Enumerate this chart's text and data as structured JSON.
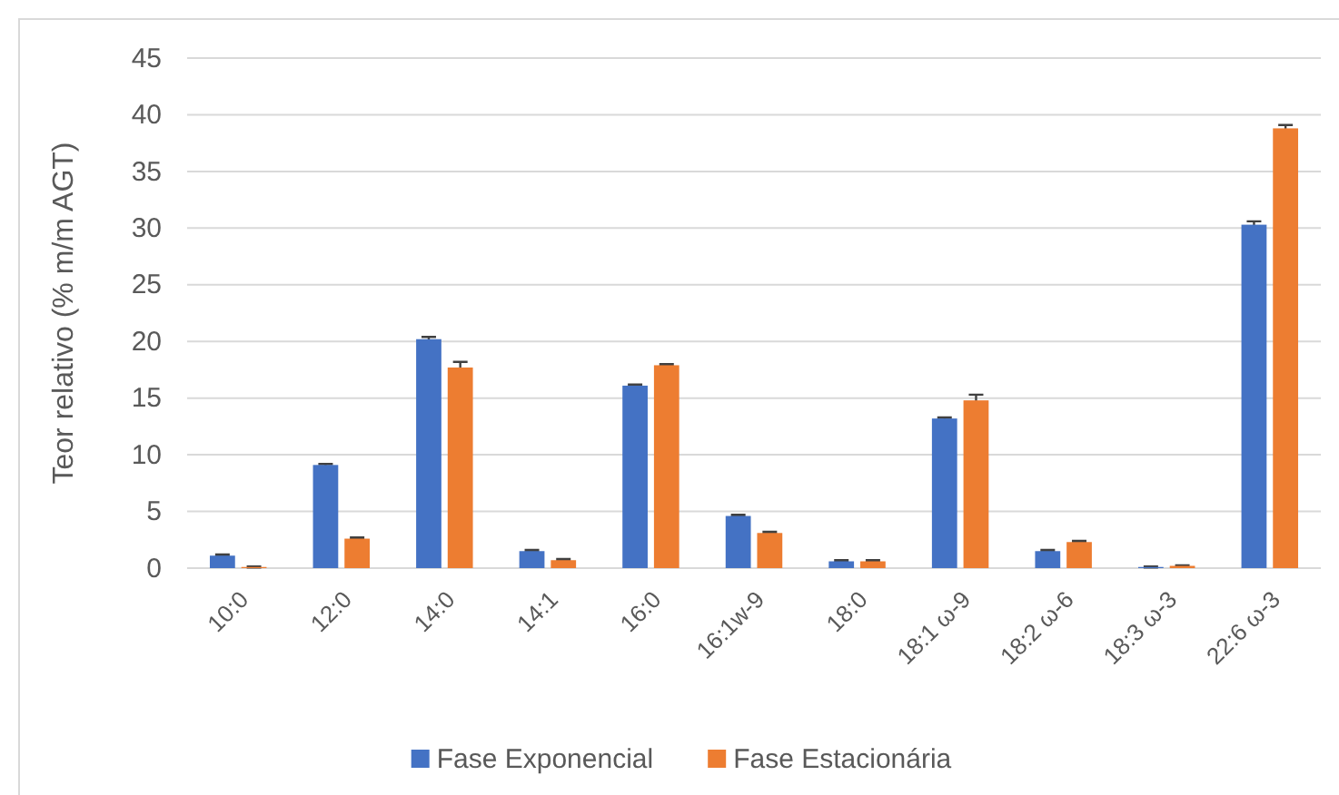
{
  "chart_data": {
    "type": "bar",
    "ylabel": "Teor relativo (% m/m AGT)",
    "categories": [
      "10:0",
      "12:0",
      "14:0",
      "14:1",
      "16:0",
      "16:1w-9",
      "18:0",
      "18:1 ω-9",
      "18:2 ω-6",
      "18:3 ω-3",
      "22:6 ω-3"
    ],
    "series": [
      {
        "name": "Fase Exponencial",
        "color": "#4472c4",
        "values": [
          1.1,
          9.1,
          20.2,
          1.5,
          16.1,
          4.6,
          0.6,
          13.2,
          1.5,
          0.1,
          30.3
        ],
        "errors": [
          0.1,
          0.1,
          0.2,
          0.1,
          0.1,
          0.1,
          0.1,
          0.1,
          0.1,
          0.05,
          0.3
        ]
      },
      {
        "name": "Fase Estacionária",
        "color": "#ed7d31",
        "values": [
          0.1,
          2.6,
          17.7,
          0.7,
          17.9,
          3.1,
          0.6,
          14.8,
          2.3,
          0.2,
          38.8
        ],
        "errors": [
          0.05,
          0.1,
          0.5,
          0.1,
          0.1,
          0.1,
          0.1,
          0.5,
          0.1,
          0.05,
          0.3
        ]
      }
    ],
    "ylim": [
      0,
      45
    ],
    "yticks": [
      0,
      5,
      10,
      15,
      20,
      25,
      30,
      35,
      40,
      45
    ],
    "grid": "y",
    "legend": "bottom"
  }
}
